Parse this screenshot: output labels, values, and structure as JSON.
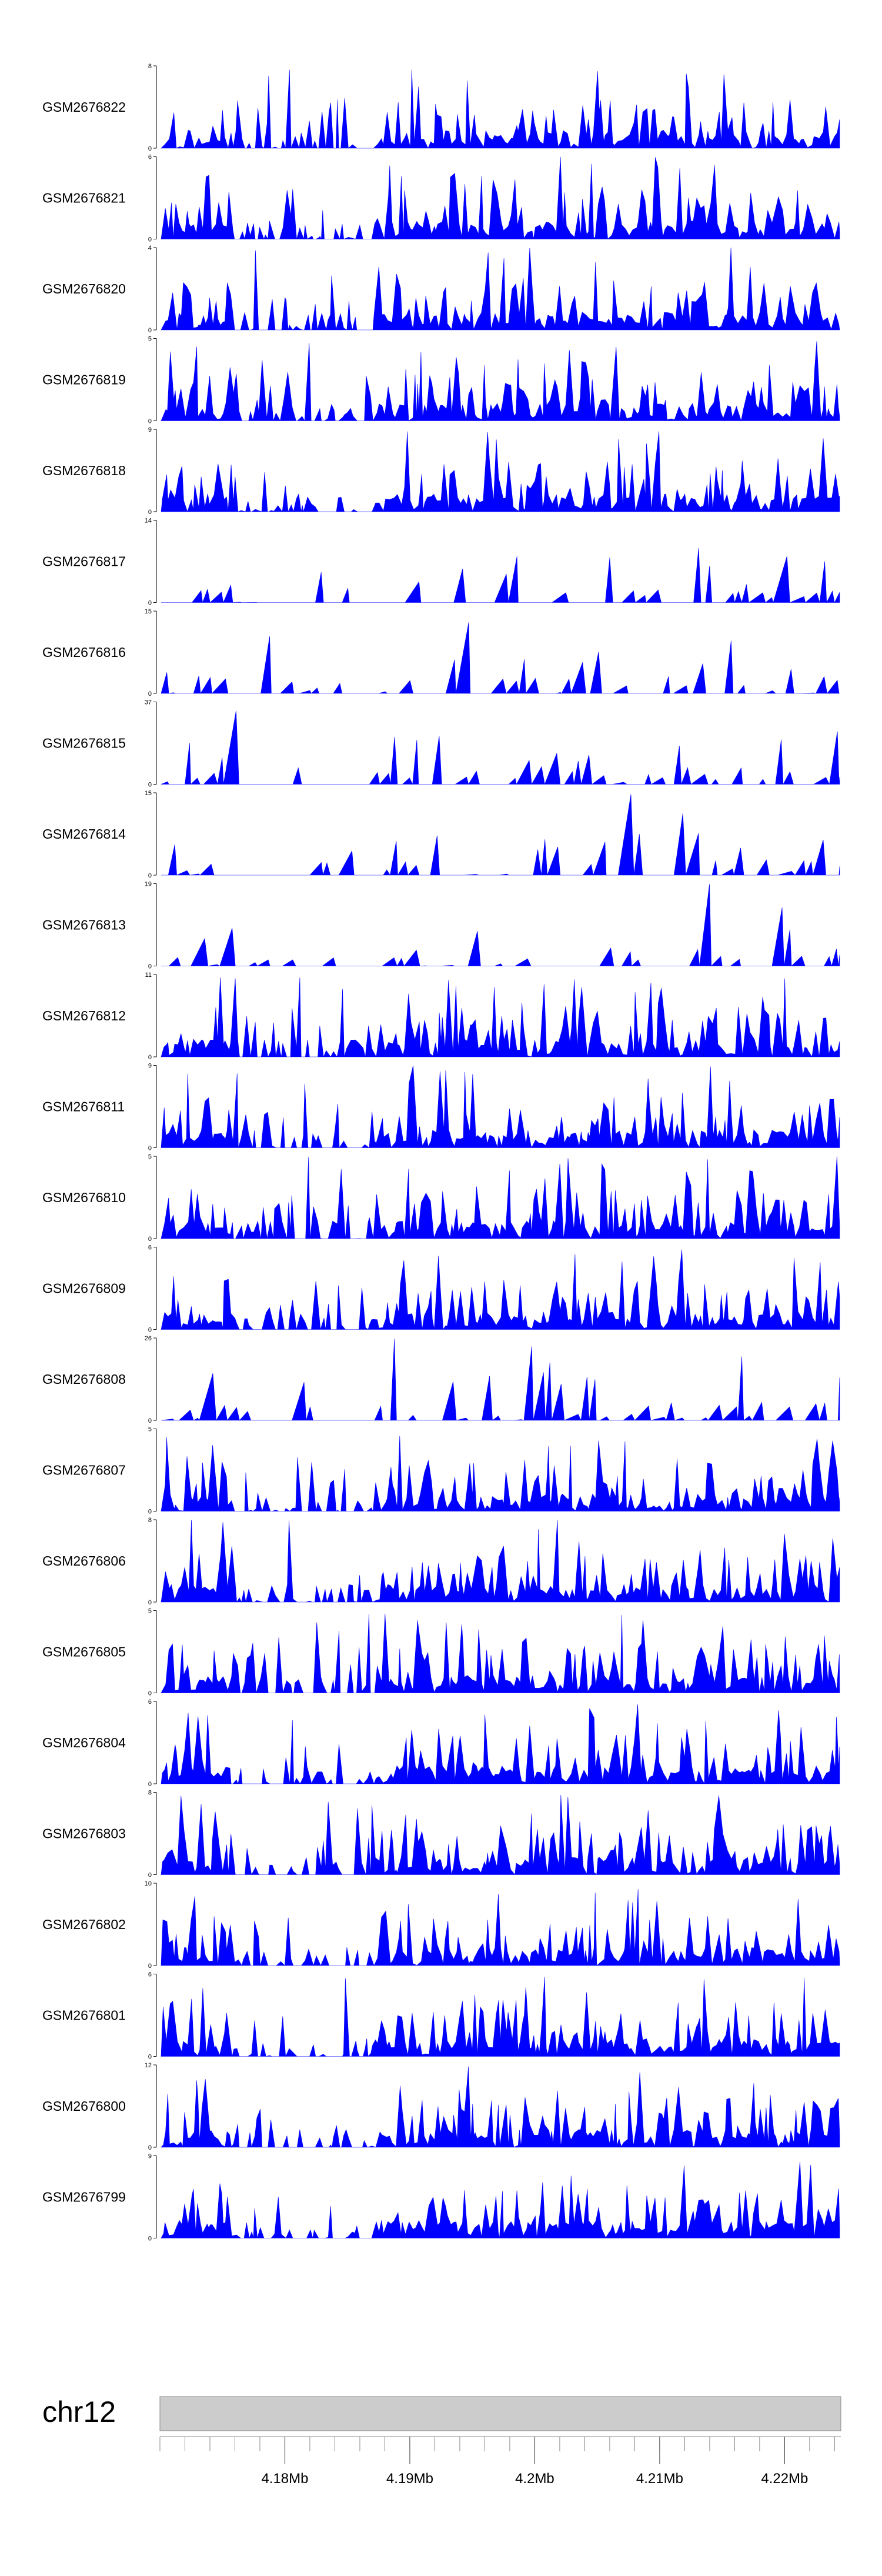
{
  "chart_data": {
    "type": "area",
    "fill_color": "#0000ff",
    "x_range_mb": [
      4.17,
      4.2245
    ],
    "tracks": [
      {
        "name": "GSM2676822",
        "ymax": 8
      },
      {
        "name": "GSM2676821",
        "ymax": 6
      },
      {
        "name": "GSM2676820",
        "ymax": 4
      },
      {
        "name": "GSM2676819",
        "ymax": 5
      },
      {
        "name": "GSM2676818",
        "ymax": 9
      },
      {
        "name": "GSM2676817",
        "ymax": 14
      },
      {
        "name": "GSM2676816",
        "ymax": 15
      },
      {
        "name": "GSM2676815",
        "ymax": 37
      },
      {
        "name": "GSM2676814",
        "ymax": 15
      },
      {
        "name": "GSM2676813",
        "ymax": 19
      },
      {
        "name": "GSM2676812",
        "ymax": 11
      },
      {
        "name": "GSM2676811",
        "ymax": 9
      },
      {
        "name": "GSM2676810",
        "ymax": 5
      },
      {
        "name": "GSM2676809",
        "ymax": 6
      },
      {
        "name": "GSM2676808",
        "ymax": 26
      },
      {
        "name": "GSM2676807",
        "ymax": 5
      },
      {
        "name": "GSM2676806",
        "ymax": 8
      },
      {
        "name": "GSM2676805",
        "ymax": 5
      },
      {
        "name": "GSM2676804",
        "ymax": 6
      },
      {
        "name": "GSM2676803",
        "ymax": 8
      },
      {
        "name": "GSM2676802",
        "ymax": 10
      },
      {
        "name": "GSM2676801",
        "ymax": 6
      },
      {
        "name": "GSM2676800",
        "ymax": 12
      },
      {
        "name": "GSM2676799",
        "ymax": 9
      }
    ],
    "ymin": 0,
    "genome_axis": {
      "chromosome": "chr12",
      "tick_labels": [
        {
          "value": 4.18,
          "label": "4.18Mb"
        },
        {
          "value": 4.19,
          "label": "4.19Mb"
        },
        {
          "value": 4.2,
          "label": "4.2Mb"
        },
        {
          "value": 4.21,
          "label": "4.21Mb"
        },
        {
          "value": 4.22,
          "label": "4.22Mb"
        }
      ],
      "minor_tick_step_mb": 0.002
    }
  }
}
